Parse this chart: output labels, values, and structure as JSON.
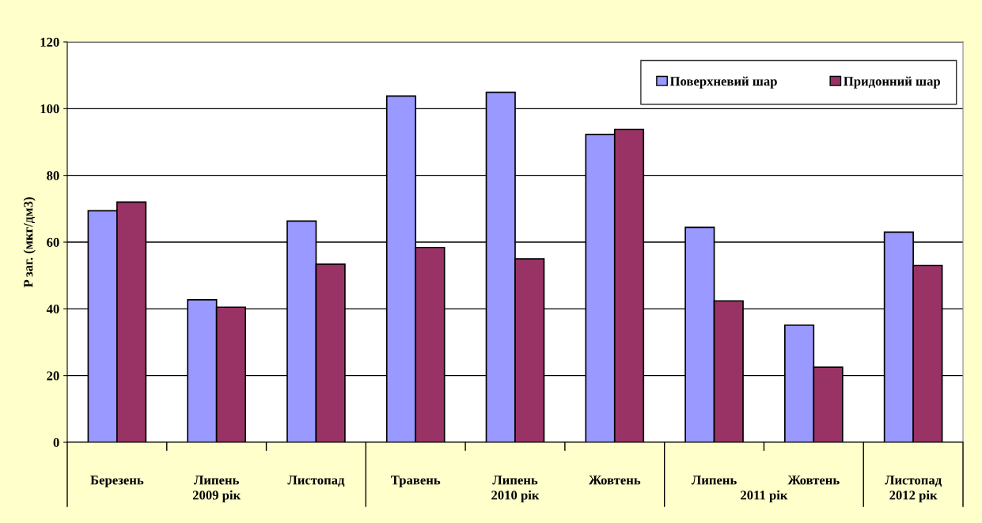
{
  "chart_data": {
    "type": "bar",
    "ylabel": "P заг. (мкг/дм3)",
    "categories": [
      "Березень",
      "Липень",
      "Листопад",
      "Травень",
      "Липень",
      "Жовтень",
      "Липень",
      "Жовтень",
      "Листопад"
    ],
    "series": [
      {
        "name": "Поверхневий шар",
        "color": "#9999ff",
        "values": [
          69.4,
          42.7,
          66.3,
          103.8,
          104.9,
          92.3,
          64.4,
          35.1,
          63.0
        ]
      },
      {
        "name": "Придонний шар",
        "color": "#993366",
        "values": [
          72.0,
          40.5,
          53.4,
          58.4,
          55.0,
          93.8,
          42.4,
          22.5,
          53.0
        ]
      }
    ],
    "annotations": [
      "2009 рік",
      "2010 рік",
      "2011 рік",
      "2012 рік"
    ],
    "ylim": [
      0,
      120
    ],
    "yticks": [
      0,
      20,
      40,
      60,
      80,
      100,
      120
    ],
    "grid": "y",
    "legend": "top right"
  }
}
